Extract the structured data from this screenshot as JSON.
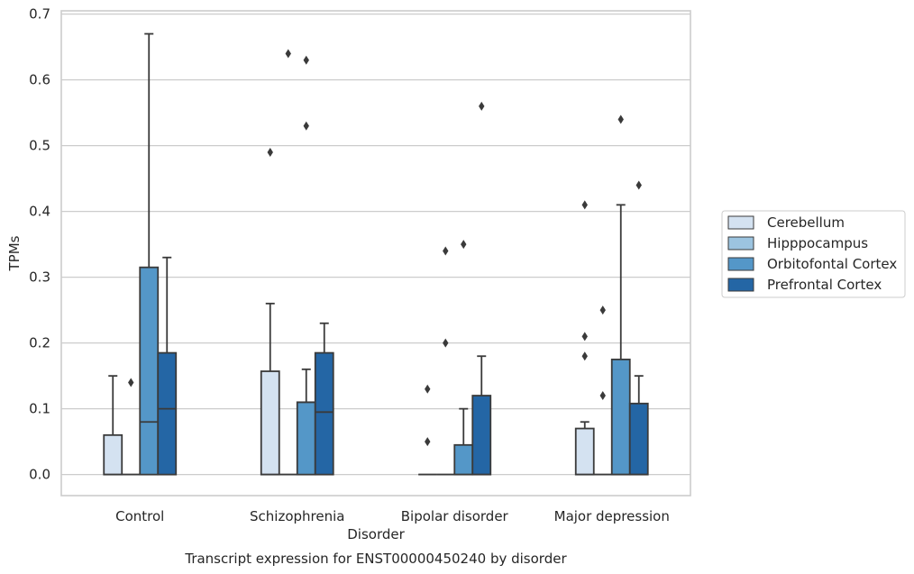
{
  "chart_data": {
    "type": "box",
    "title": "Transcript expression for ENST00000450240 by disorder",
    "xlabel": "Disorder",
    "ylabel": "TPMs",
    "ylim": [
      -0.032,
      0.705
    ],
    "yticks": [
      "0.0",
      "0.1",
      "0.2",
      "0.3",
      "0.4",
      "0.5",
      "0.6",
      "0.7"
    ],
    "grid": "horizontal",
    "legend_position": "right",
    "categories": [
      "Control",
      "Schizophrenia",
      "Bipolar disorder",
      "Major depression"
    ],
    "series": [
      {
        "name": "Cerebellum",
        "color": "#d4e2f1",
        "boxes": [
          {
            "q1": 0.0,
            "median": 0.0,
            "q3": 0.06,
            "whisker_low": 0.0,
            "whisker_high": 0.15,
            "outliers": []
          },
          {
            "q1": 0.0,
            "median": 0.0,
            "q3": 0.157,
            "whisker_low": 0.0,
            "whisker_high": 0.26,
            "outliers": [
              0.49
            ]
          },
          {
            "q1": 0.0,
            "median": 0.0,
            "q3": 0.0,
            "whisker_low": 0.0,
            "whisker_high": 0.0,
            "outliers": [
              0.13,
              0.05
            ]
          },
          {
            "q1": 0.0,
            "median": 0.0,
            "q3": 0.07,
            "whisker_low": 0.0,
            "whisker_high": 0.08,
            "outliers": [
              0.41,
              0.21,
              0.18
            ]
          }
        ]
      },
      {
        "name": "Hipppocampus",
        "color": "#9cc4e0",
        "boxes": [
          {
            "q1": 0.0,
            "median": 0.0,
            "q3": 0.0,
            "whisker_low": 0.0,
            "whisker_high": 0.0,
            "outliers": [
              0.14
            ]
          },
          {
            "q1": 0.0,
            "median": 0.0,
            "q3": 0.0,
            "whisker_low": 0.0,
            "whisker_high": 0.0,
            "outliers": [
              0.64
            ]
          },
          {
            "q1": 0.0,
            "median": 0.0,
            "q3": 0.0,
            "whisker_low": 0.0,
            "whisker_high": 0.0,
            "outliers": [
              0.34,
              0.2
            ]
          },
          {
            "q1": 0.0,
            "median": 0.0,
            "q3": 0.0,
            "whisker_low": 0.0,
            "whisker_high": 0.0,
            "outliers": [
              0.25,
              0.12
            ]
          }
        ]
      },
      {
        "name": "Orbitofontal Cortex",
        "color": "#5497c8",
        "boxes": [
          {
            "q1": 0.0,
            "median": 0.08,
            "q3": 0.315,
            "whisker_low": 0.0,
            "whisker_high": 0.67,
            "outliers": []
          },
          {
            "q1": 0.0,
            "median": 0.11,
            "q3": 0.11,
            "whisker_low": 0.0,
            "whisker_high": 0.16,
            "outliers": [
              0.63,
              0.53
            ]
          },
          {
            "q1": 0.0,
            "median": 0.0,
            "q3": 0.045,
            "whisker_low": 0.0,
            "whisker_high": 0.1,
            "outliers": [
              0.35
            ]
          },
          {
            "q1": 0.0,
            "median": 0.0,
            "q3": 0.175,
            "whisker_low": 0.0,
            "whisker_high": 0.41,
            "outliers": [
              0.54
            ]
          }
        ]
      },
      {
        "name": "Prefrontal Cortex",
        "color": "#2466a5",
        "boxes": [
          {
            "q1": 0.0,
            "median": 0.1,
            "q3": 0.185,
            "whisker_low": 0.0,
            "whisker_high": 0.33,
            "outliers": []
          },
          {
            "q1": 0.0,
            "median": 0.095,
            "q3": 0.185,
            "whisker_low": 0.0,
            "whisker_high": 0.23,
            "outliers": []
          },
          {
            "q1": 0.0,
            "median": 0.0,
            "q3": 0.12,
            "whisker_low": 0.0,
            "whisker_high": 0.18,
            "outliers": [
              0.56
            ]
          },
          {
            "q1": 0.0,
            "median": 0.0,
            "q3": 0.108,
            "whisker_low": 0.0,
            "whisker_high": 0.15,
            "outliers": [
              0.44
            ]
          }
        ]
      }
    ]
  }
}
